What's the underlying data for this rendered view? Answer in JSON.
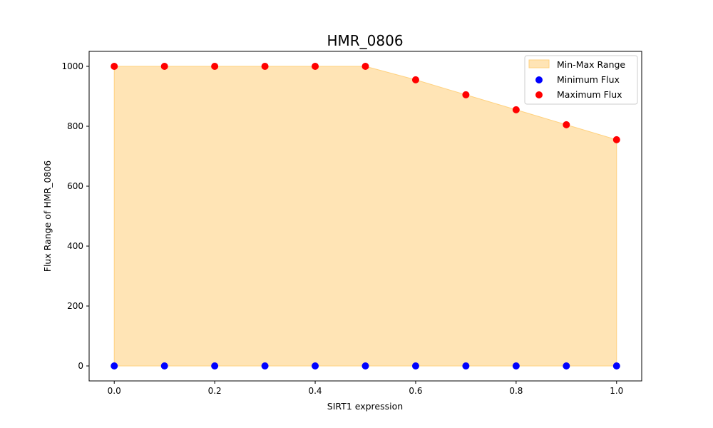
{
  "chart_data": {
    "type": "scatter",
    "title": "HMR_0806",
    "xlabel": "SIRT1 expression",
    "ylabel": "Flux Range of HMR_0806",
    "xlim": [
      -0.05,
      1.05
    ],
    "ylim": [
      -50,
      1050
    ],
    "x_ticks": [
      0.0,
      0.2,
      0.4,
      0.6,
      0.8,
      1.0
    ],
    "x_tick_labels": [
      "0.0",
      "0.2",
      "0.4",
      "0.6",
      "0.8",
      "1.0"
    ],
    "y_ticks": [
      0,
      200,
      400,
      600,
      800,
      1000
    ],
    "y_tick_labels": [
      "0",
      "200",
      "400",
      "600",
      "800",
      "1000"
    ],
    "grid": false,
    "legend_position": "top-right",
    "x": [
      0.0,
      0.1,
      0.2,
      0.3,
      0.4,
      0.5,
      0.6,
      0.7,
      0.8,
      0.9,
      1.0
    ],
    "fill": {
      "name": "Min-Max Range",
      "color": "#ffe4b5",
      "edge_color": "#ffd280"
    },
    "series": [
      {
        "name": "Minimum Flux",
        "color": "#0000ff",
        "values": [
          0,
          0,
          0,
          0,
          0,
          0,
          0,
          0,
          0,
          0,
          0
        ]
      },
      {
        "name": "Maximum Flux",
        "color": "#ff0000",
        "values": [
          1000,
          1000,
          1000,
          1000,
          1000,
          1000,
          955,
          905,
          855,
          805,
          755
        ]
      }
    ]
  }
}
